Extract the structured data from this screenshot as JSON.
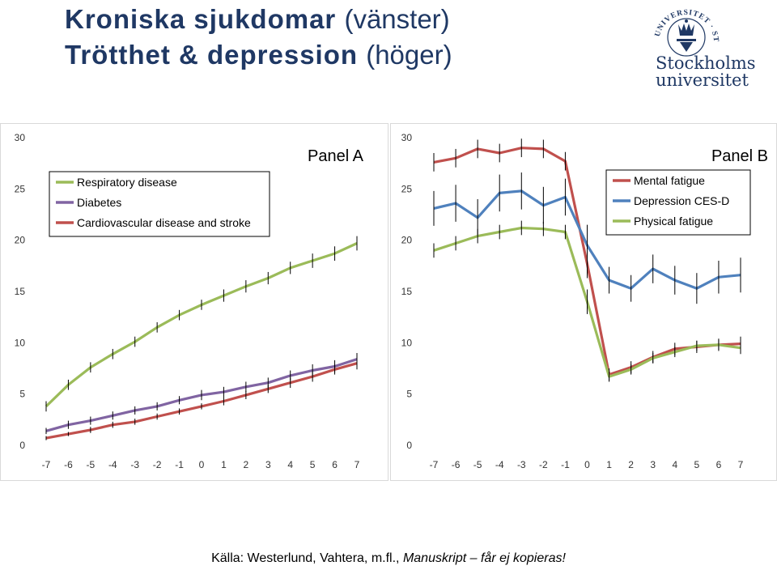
{
  "title": {
    "line1_bold": "Kroniska sjukdomar",
    "line1_paren": "(vänster)",
    "line2_bold": "Trötthet & depression",
    "line2_paren": "(höger)"
  },
  "logo": {
    "name_line1": "Stockholms",
    "name_line2": "universitet",
    "seal_text": "UNIVERSITET · STOCKHOLMS",
    "color": "#1f3864"
  },
  "source": {
    "text": "Källa: Westerlund, Vahtera, m.fl.,",
    "italic": "Manuskript – får ej kopieras!"
  },
  "chart_data": [
    {
      "type": "line",
      "title": "Panel A",
      "x": [
        -7,
        -6,
        -5,
        -4,
        -3,
        -2,
        -1,
        0,
        1,
        2,
        3,
        4,
        5,
        6,
        7
      ],
      "ylim": [
        0,
        30
      ],
      "yticks": [
        0,
        5,
        10,
        15,
        20,
        25,
        30
      ],
      "xlabel": "",
      "ylabel": "",
      "grid": false,
      "legend": "top-left",
      "error_bars": true,
      "series": [
        {
          "name": "Respiratory disease",
          "color": "#9bbb59",
          "values": [
            3.8,
            5.9,
            7.6,
            8.9,
            10.1,
            11.5,
            12.7,
            13.7,
            14.6,
            15.5,
            16.3,
            17.3,
            18.0,
            18.7,
            19.7
          ],
          "err": [
            0.5,
            0.5,
            0.5,
            0.5,
            0.5,
            0.5,
            0.5,
            0.5,
            0.6,
            0.6,
            0.6,
            0.6,
            0.7,
            0.7,
            0.7
          ]
        },
        {
          "name": "Diabetes",
          "color": "#8064a2",
          "values": [
            1.4,
            2.0,
            2.4,
            2.9,
            3.4,
            3.8,
            4.4,
            4.9,
            5.2,
            5.7,
            6.1,
            6.8,
            7.3,
            7.7,
            8.4
          ],
          "err": [
            0.3,
            0.4,
            0.4,
            0.4,
            0.4,
            0.4,
            0.4,
            0.5,
            0.5,
            0.5,
            0.5,
            0.5,
            0.6,
            0.6,
            0.6
          ]
        },
        {
          "name": "Cardiovascular disease and stroke",
          "color": "#c0504d",
          "values": [
            0.7,
            1.1,
            1.5,
            2.0,
            2.3,
            2.8,
            3.3,
            3.8,
            4.3,
            4.9,
            5.5,
            6.1,
            6.7,
            7.4,
            8.0
          ],
          "err": [
            0.2,
            0.2,
            0.3,
            0.3,
            0.3,
            0.3,
            0.3,
            0.3,
            0.4,
            0.4,
            0.4,
            0.5,
            0.5,
            0.5,
            0.6
          ]
        }
      ]
    },
    {
      "type": "line",
      "title": "Panel B",
      "x": [
        -7,
        -6,
        -5,
        -4,
        -3,
        -2,
        -1,
        0,
        1,
        2,
        3,
        4,
        5,
        6,
        7
      ],
      "ylim": [
        0,
        30
      ],
      "yticks": [
        0,
        5,
        10,
        15,
        20,
        25,
        30
      ],
      "xlabel": "",
      "ylabel": "",
      "grid": false,
      "legend": "top-right",
      "error_bars": true,
      "series": [
        {
          "name": "Mental fatigue",
          "color": "#c0504d",
          "values": [
            27.6,
            28.0,
            28.9,
            28.5,
            29.0,
            28.9,
            27.7,
            17.7,
            6.9,
            7.6,
            8.6,
            9.4,
            9.6,
            9.8,
            9.9
          ],
          "err": [
            0.9,
            0.9,
            0.9,
            0.9,
            0.9,
            0.9,
            0.9,
            1.4,
            0.6,
            0.6,
            0.6,
            0.6,
            0.6,
            0.6,
            0.7
          ]
        },
        {
          "name": "Depression CES-D",
          "color": "#4f81bd",
          "values": [
            23.1,
            23.6,
            22.2,
            24.6,
            24.8,
            23.4,
            24.2,
            19.5,
            16.1,
            15.3,
            17.2,
            16.1,
            15.3,
            16.4,
            16.6
          ],
          "err": [
            1.7,
            1.8,
            1.8,
            1.8,
            1.8,
            1.8,
            1.8,
            2.0,
            1.3,
            1.3,
            1.4,
            1.4,
            1.5,
            1.6,
            1.7
          ]
        },
        {
          "name": "Physical fatigue",
          "color": "#9bbb59",
          "values": [
            19.0,
            19.7,
            20.4,
            20.8,
            21.2,
            21.1,
            20.8,
            14.0,
            6.7,
            7.4,
            8.5,
            9.1,
            9.7,
            9.8,
            9.5
          ],
          "err": [
            0.7,
            0.7,
            0.7,
            0.7,
            0.7,
            0.7,
            0.7,
            1.2,
            0.5,
            0.5,
            0.5,
            0.5,
            0.5,
            0.5,
            0.6
          ]
        }
      ]
    }
  ]
}
